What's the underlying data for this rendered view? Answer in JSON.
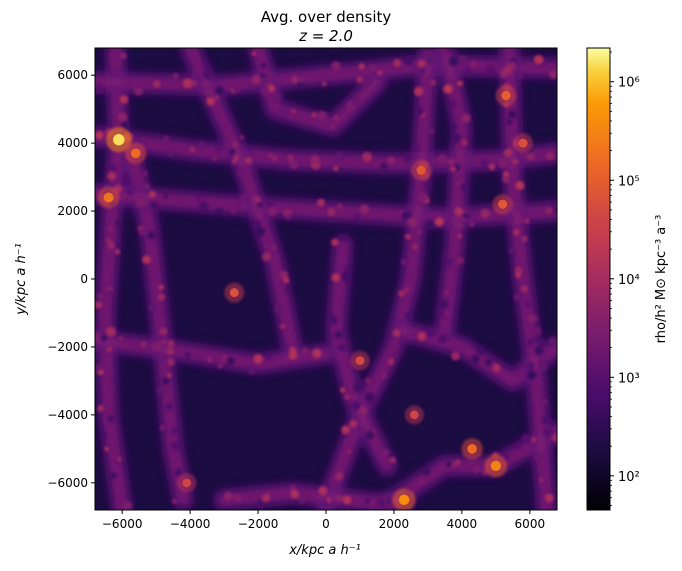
{
  "chart_data": {
    "type": "heatmap",
    "title": "Avg. over density",
    "subtitle": "z = 2.0",
    "xlabel": "x/kpc a h⁻¹",
    "ylabel": "y/kpc a h⁻¹",
    "xlim": [
      -6800,
      6800
    ],
    "ylim": [
      -6800,
      6800
    ],
    "x_ticks": [
      -6000,
      -4000,
      -2000,
      0,
      2000,
      4000,
      6000
    ],
    "x_tick_labels": [
      "−6000",
      "−4000",
      "−2000",
      "0",
      "2000",
      "4000",
      "6000"
    ],
    "y_ticks": [
      -6000,
      -4000,
      -2000,
      0,
      2000,
      4000,
      6000
    ],
    "y_tick_labels": [
      "−6000",
      "−4000",
      "−2000",
      "0",
      "2000",
      "4000",
      "6000"
    ],
    "colorbar": {
      "label": "rho/h² M⊙ kpc⁻³ a⁻³",
      "scale": "log",
      "range": [
        45,
        2200000
      ],
      "ticks": [
        100,
        1000,
        10000,
        100000,
        1000000
      ],
      "tick_labels": [
        "10²",
        "10³",
        "10⁴",
        "10⁵",
        "10⁶"
      ],
      "colormap": "inferno"
    },
    "clusters": [
      {
        "x": -6100,
        "y": 4100,
        "value": 1500000
      },
      {
        "x": -6400,
        "y": 2400,
        "value": 200000
      },
      {
        "x": -5600,
        "y": 3700,
        "value": 150000
      },
      {
        "x": 2300,
        "y": -6500,
        "value": 400000
      },
      {
        "x": 5000,
        "y": -5500,
        "value": 300000
      },
      {
        "x": 4300,
        "y": -5000,
        "value": 150000
      },
      {
        "x": 5300,
        "y": 5400,
        "value": 100000
      },
      {
        "x": 2800,
        "y": 3200,
        "value": 80000
      },
      {
        "x": 5200,
        "y": 2200,
        "value": 80000
      },
      {
        "x": -2700,
        "y": -400,
        "value": 60000
      },
      {
        "x": 1000,
        "y": -2400,
        "value": 50000
      },
      {
        "x": 5800,
        "y": 4000,
        "value": 60000
      },
      {
        "x": -4100,
        "y": -6000,
        "value": 40000
      },
      {
        "x": 2600,
        "y": -4000,
        "value": 40000
      }
    ],
    "filaments": [
      {
        "points": [
          [
            -6800,
            4200
          ],
          [
            -4000,
            3800
          ],
          [
            -1000,
            3500
          ],
          [
            2000,
            3400
          ],
          [
            5000,
            3500
          ],
          [
            6800,
            3700
          ]
        ]
      },
      {
        "points": [
          [
            -6200,
            6800
          ],
          [
            -6100,
            4100
          ],
          [
            -6300,
            2000
          ],
          [
            -6500,
            -1000
          ],
          [
            -6400,
            -4000
          ],
          [
            -6000,
            -6800
          ]
        ]
      },
      {
        "points": [
          [
            -6800,
            5800
          ],
          [
            -3000,
            5700
          ],
          [
            0,
            6000
          ],
          [
            3000,
            6300
          ],
          [
            6800,
            6200
          ]
        ]
      },
      {
        "points": [
          [
            -5800,
            4000
          ],
          [
            -5200,
            1500
          ],
          [
            -4800,
            -2000
          ],
          [
            -4500,
            -5000
          ],
          [
            -4200,
            -6500
          ]
        ]
      },
      {
        "points": [
          [
            -6800,
            2500
          ],
          [
            -3000,
            2200
          ],
          [
            0,
            2000
          ],
          [
            3500,
            1800
          ],
          [
            6800,
            2000
          ]
        ]
      },
      {
        "points": [
          [
            0,
            -6700
          ],
          [
            1000,
            -4000
          ],
          [
            2000,
            -2000
          ],
          [
            2500,
            0
          ],
          [
            2800,
            3000
          ],
          [
            3000,
            6600
          ]
        ]
      },
      {
        "points": [
          [
            2000,
            -6500
          ],
          [
            3500,
            -5500
          ],
          [
            5000,
            -5500
          ],
          [
            6800,
            -4500
          ]
        ]
      },
      {
        "points": [
          [
            2200,
            -1500
          ],
          [
            4000,
            -2000
          ],
          [
            5500,
            -3000
          ],
          [
            6800,
            -2000
          ]
        ]
      },
      {
        "points": [
          [
            500,
            1000
          ],
          [
            300,
            -1500
          ],
          [
            800,
            -3500
          ],
          [
            1800,
            -5500
          ]
        ]
      },
      {
        "points": [
          [
            5400,
            6800
          ],
          [
            5500,
            3000
          ],
          [
            5800,
            0
          ],
          [
            6200,
            -3000
          ],
          [
            6500,
            -6800
          ]
        ]
      },
      {
        "points": [
          [
            -4000,
            6800
          ],
          [
            -2500,
            3500
          ],
          [
            -1500,
            500
          ],
          [
            -1000,
            -2000
          ]
        ]
      },
      {
        "points": [
          [
            -6800,
            -1800
          ],
          [
            -4500,
            -2100
          ],
          [
            -2000,
            -2500
          ],
          [
            0,
            -2200
          ]
        ]
      },
      {
        "points": [
          [
            -3000,
            -6500
          ],
          [
            -1000,
            -6300
          ],
          [
            1500,
            -6600
          ],
          [
            2300,
            -6500
          ]
        ]
      },
      {
        "points": [
          [
            3500,
            6800
          ],
          [
            4000,
            4500
          ],
          [
            3800,
            1000
          ],
          [
            3500,
            -1500
          ]
        ]
      },
      {
        "points": [
          [
            -2000,
            6800
          ],
          [
            -1500,
            5000
          ],
          [
            200,
            4500
          ],
          [
            1500,
            5800
          ]
        ]
      }
    ]
  }
}
